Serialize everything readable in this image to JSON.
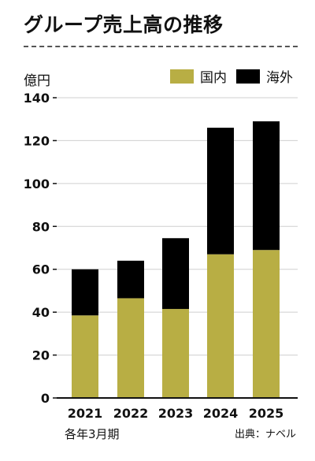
{
  "title": "グループ売上高の推移",
  "unit_label": "億円",
  "footnotes": {
    "period": "各年3月期",
    "source": "出典：ナベル"
  },
  "colors": {
    "domestic": "#b8ae44",
    "overseas": "#000000",
    "axis": "#111111",
    "grid": "#cfcfcf"
  },
  "chart_data": {
    "type": "bar",
    "stacked": true,
    "categories": [
      "2021",
      "2022",
      "2023",
      "2024",
      "2025"
    ],
    "series": [
      {
        "name": "国内",
        "values": [
          38.5,
          46.5,
          41.5,
          67,
          69
        ]
      },
      {
        "name": "海外",
        "values": [
          21.5,
          17.5,
          33,
          59,
          60
        ]
      }
    ],
    "ylim": [
      0,
      140
    ],
    "yticks": [
      0,
      20,
      40,
      60,
      80,
      100,
      120,
      140
    ],
    "ytick_labels": [
      "0",
      "20",
      "40",
      "60",
      "80",
      "100",
      "120",
      "140"
    ],
    "grid": true,
    "legend_position": "top-right",
    "ylabel": "億円",
    "xlabel": ""
  }
}
